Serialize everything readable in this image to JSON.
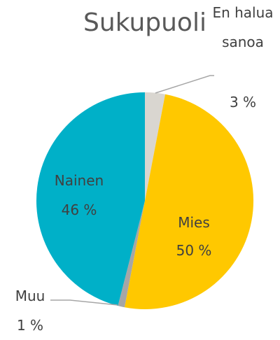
{
  "chart_data": {
    "type": "pie",
    "title": "Sukupuoli",
    "categories": [
      "En halua sanoa",
      "Mies",
      "Muu",
      "Nainen"
    ],
    "values": [
      3,
      50,
      1,
      46
    ],
    "value_labels": [
      "3 %",
      "50 %",
      "1 %",
      "46 %"
    ],
    "colors": [
      "#d9d6d0",
      "#ffc800",
      "#a6a6a6",
      "#00b0c8"
    ]
  }
}
